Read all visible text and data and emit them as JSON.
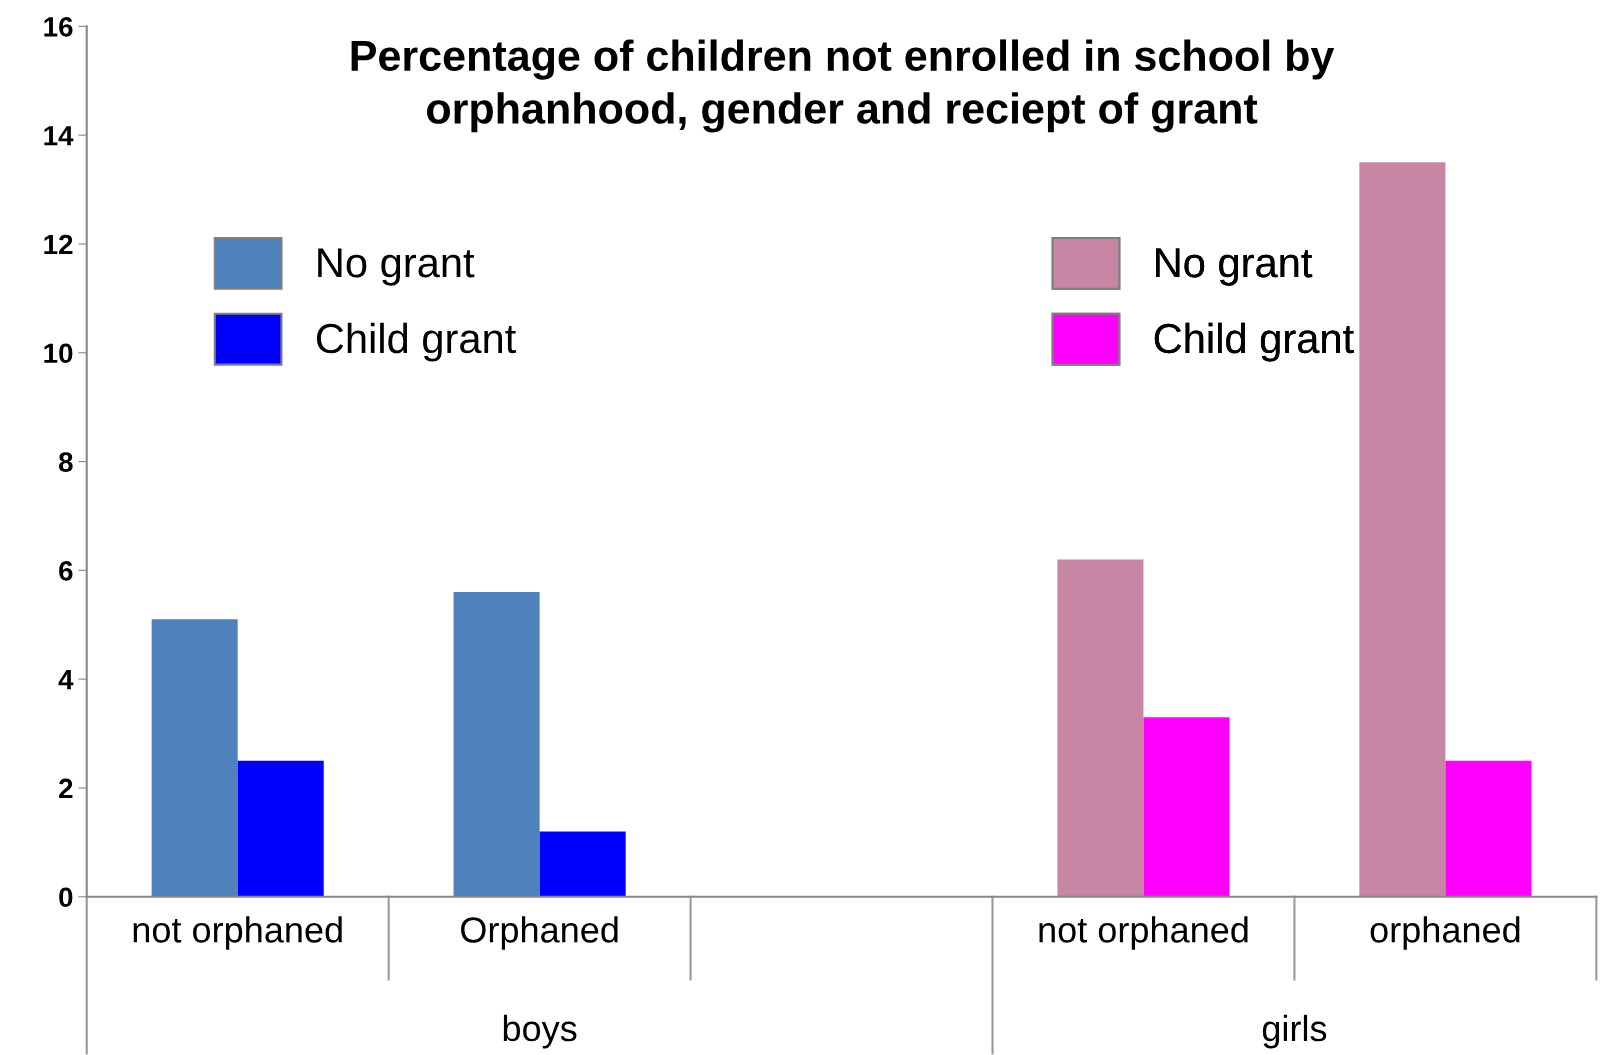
{
  "chart_data": {
    "type": "bar",
    "title": "Percentage of children not enrolled in school by\norphanhood, gender and reciept of grant",
    "categories": [
      "not orphaned",
      "Orphaned",
      null,
      "not orphaned",
      "orphaned"
    ],
    "series": [
      {
        "name": "No grant",
        "color": "#4f81bd",
        "values": [
          5.1,
          5.6,
          null,
          null,
          null
        ]
      },
      {
        "name": "Child grant",
        "color": "#0000ff",
        "values": [
          2.5,
          1.2,
          null,
          null,
          null
        ]
      },
      {
        "name": "No grant",
        "color": "#c686a4",
        "values": [
          null,
          null,
          null,
          6.2,
          13.5
        ]
      },
      {
        "name": "Child grant",
        "color": "#ff00ff",
        "values": [
          null,
          null,
          null,
          3.3,
          2.5
        ]
      }
    ],
    "annotations": [
      "boys",
      "girls"
    ],
    "ylim": [
      0,
      16
    ],
    "yticks": [
      0,
      2,
      4,
      6,
      8,
      10,
      12,
      14,
      16
    ],
    "grid": false,
    "legend": "top"
  }
}
